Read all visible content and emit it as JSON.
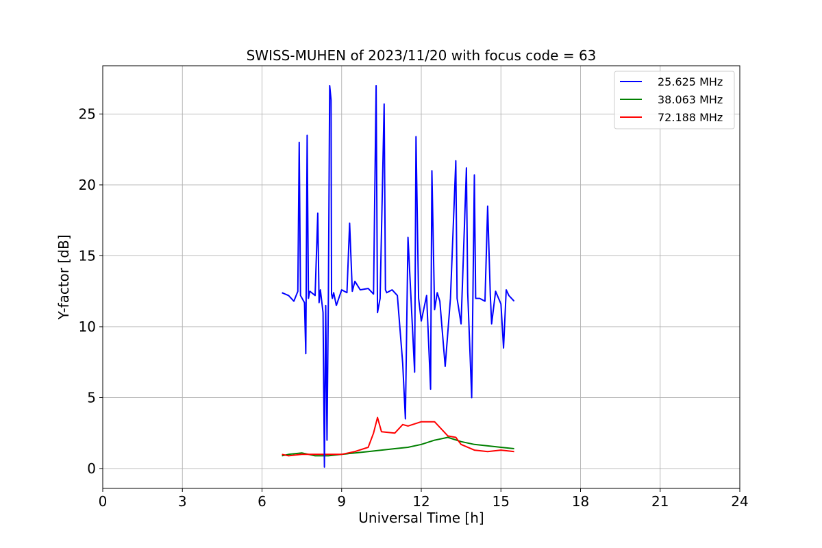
{
  "chart_data": {
    "type": "line",
    "title": "SWISS-MUHEN of 2023/11/20 with focus code = 63",
    "xlabel": "Universal Time [h]",
    "ylabel": "Y-factor [dB]",
    "xlim": [
      0,
      24
    ],
    "ylim": [
      -1.4,
      28.4
    ],
    "xticks": [
      0,
      3,
      6,
      9,
      12,
      15,
      18,
      21,
      24
    ],
    "yticks": [
      0,
      5,
      10,
      15,
      20,
      25
    ],
    "grid": true,
    "legend_position": "top-right",
    "series": [
      {
        "name": "25.625 MHz",
        "color": "#0000ff",
        "x": [
          6.75,
          7.0,
          7.2,
          7.35,
          7.4,
          7.45,
          7.6,
          7.65,
          7.7,
          7.75,
          7.8,
          8.0,
          8.1,
          8.15,
          8.2,
          8.3,
          8.35,
          8.4,
          8.45,
          8.5,
          8.55,
          8.6,
          8.62,
          8.65,
          8.7,
          8.8,
          9.0,
          9.2,
          9.3,
          9.4,
          9.5,
          9.7,
          10.0,
          10.2,
          10.3,
          10.35,
          10.45,
          10.6,
          10.65,
          10.7,
          10.9,
          11.1,
          11.3,
          11.4,
          11.5,
          11.6,
          11.75,
          11.8,
          11.9,
          12.0,
          12.2,
          12.35,
          12.4,
          12.5,
          12.6,
          12.7,
          12.9,
          13.1,
          13.3,
          13.35,
          13.5,
          13.7,
          13.75,
          13.9,
          14.0,
          14.05,
          14.2,
          14.4,
          14.5,
          14.6,
          14.65,
          14.8,
          15.0,
          15.1,
          15.2,
          15.3,
          15.5
        ],
        "y": [
          12.4,
          12.2,
          11.8,
          12.5,
          23.0,
          12.2,
          11.7,
          8.1,
          23.5,
          12.0,
          12.5,
          12.2,
          18.0,
          11.7,
          12.6,
          11.0,
          0.1,
          11.5,
          2.0,
          12.2,
          27.0,
          26.0,
          12.3,
          12.0,
          12.4,
          11.5,
          12.6,
          12.4,
          17.3,
          12.5,
          13.2,
          12.6,
          12.7,
          12.3,
          27.0,
          11.0,
          12.0,
          25.7,
          12.6,
          12.4,
          12.6,
          12.2,
          7.4,
          3.5,
          16.3,
          12.5,
          6.8,
          23.4,
          12.0,
          10.4,
          12.2,
          5.6,
          21.0,
          11.2,
          12.4,
          11.8,
          7.2,
          12.0,
          21.7,
          12.0,
          10.2,
          21.2,
          12.4,
          5.0,
          20.7,
          12.0,
          12.0,
          11.8,
          18.5,
          12.2,
          10.2,
          12.5,
          11.6,
          8.5,
          12.6,
          12.2,
          11.8
        ]
      },
      {
        "name": "38.063 MHz",
        "color": "#008000",
        "x": [
          6.75,
          7.0,
          7.5,
          8.0,
          8.5,
          9.0,
          9.5,
          10.0,
          10.5,
          11.0,
          11.5,
          12.0,
          12.5,
          13.0,
          13.5,
          14.0,
          14.5,
          15.0,
          15.5
        ],
        "y": [
          0.9,
          1.0,
          1.1,
          0.9,
          0.9,
          1.0,
          1.1,
          1.2,
          1.3,
          1.4,
          1.5,
          1.7,
          2.0,
          2.2,
          1.9,
          1.7,
          1.6,
          1.5,
          1.4
        ]
      },
      {
        "name": "72.188 MHz",
        "color": "#ff0000",
        "x": [
          6.75,
          7.0,
          7.5,
          8.0,
          8.5,
          9.0,
          9.5,
          10.0,
          10.2,
          10.35,
          10.5,
          11.0,
          11.3,
          11.5,
          12.0,
          12.5,
          12.8,
          13.0,
          13.3,
          13.5,
          14.0,
          14.5,
          15.0,
          15.5
        ],
        "y": [
          1.0,
          0.9,
          1.0,
          1.0,
          1.0,
          1.0,
          1.2,
          1.5,
          2.5,
          3.6,
          2.6,
          2.5,
          3.1,
          3.0,
          3.3,
          3.3,
          2.7,
          2.3,
          2.2,
          1.7,
          1.3,
          1.2,
          1.3,
          1.2
        ]
      }
    ]
  }
}
